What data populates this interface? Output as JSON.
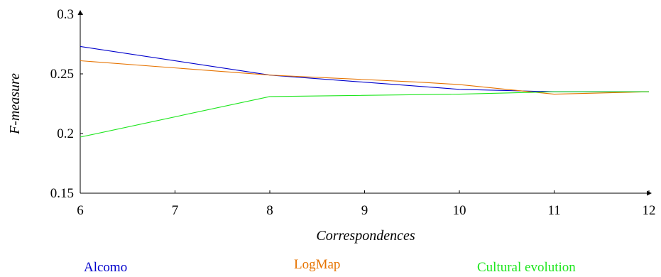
{
  "chart_data": {
    "type": "line",
    "title": "",
    "xlabel": "Correspondences",
    "ylabel": "F-measure",
    "categories": [
      "6",
      "7",
      "8",
      "9",
      "10",
      "11",
      "12"
    ],
    "ylim": [
      0.15,
      0.3
    ],
    "yticks": [
      "0.15",
      "0.2",
      "0.25",
      "0.3"
    ],
    "grid": false,
    "legend_position": "bottom",
    "series": [
      {
        "name": "Alcomo",
        "color": "#0000cc",
        "points": [
          [
            0,
            0.273
          ],
          [
            2,
            0.249
          ],
          [
            4,
            0.237
          ],
          [
            5,
            0.235
          ],
          [
            6,
            0.235
          ]
        ]
      },
      {
        "name": "LogMap",
        "color": "#e67300",
        "points": [
          [
            0,
            0.261
          ],
          [
            2,
            0.249
          ],
          [
            3.6,
            0.243
          ],
          [
            4,
            0.241
          ],
          [
            5,
            0.233
          ],
          [
            6,
            0.235
          ]
        ]
      },
      {
        "name": "Cultural evolution",
        "color": "#1ee61e",
        "points": [
          [
            0,
            0.197
          ],
          [
            2,
            0.231
          ],
          [
            4,
            0.233
          ],
          [
            5,
            0.235
          ],
          [
            6,
            0.235
          ]
        ]
      }
    ]
  }
}
